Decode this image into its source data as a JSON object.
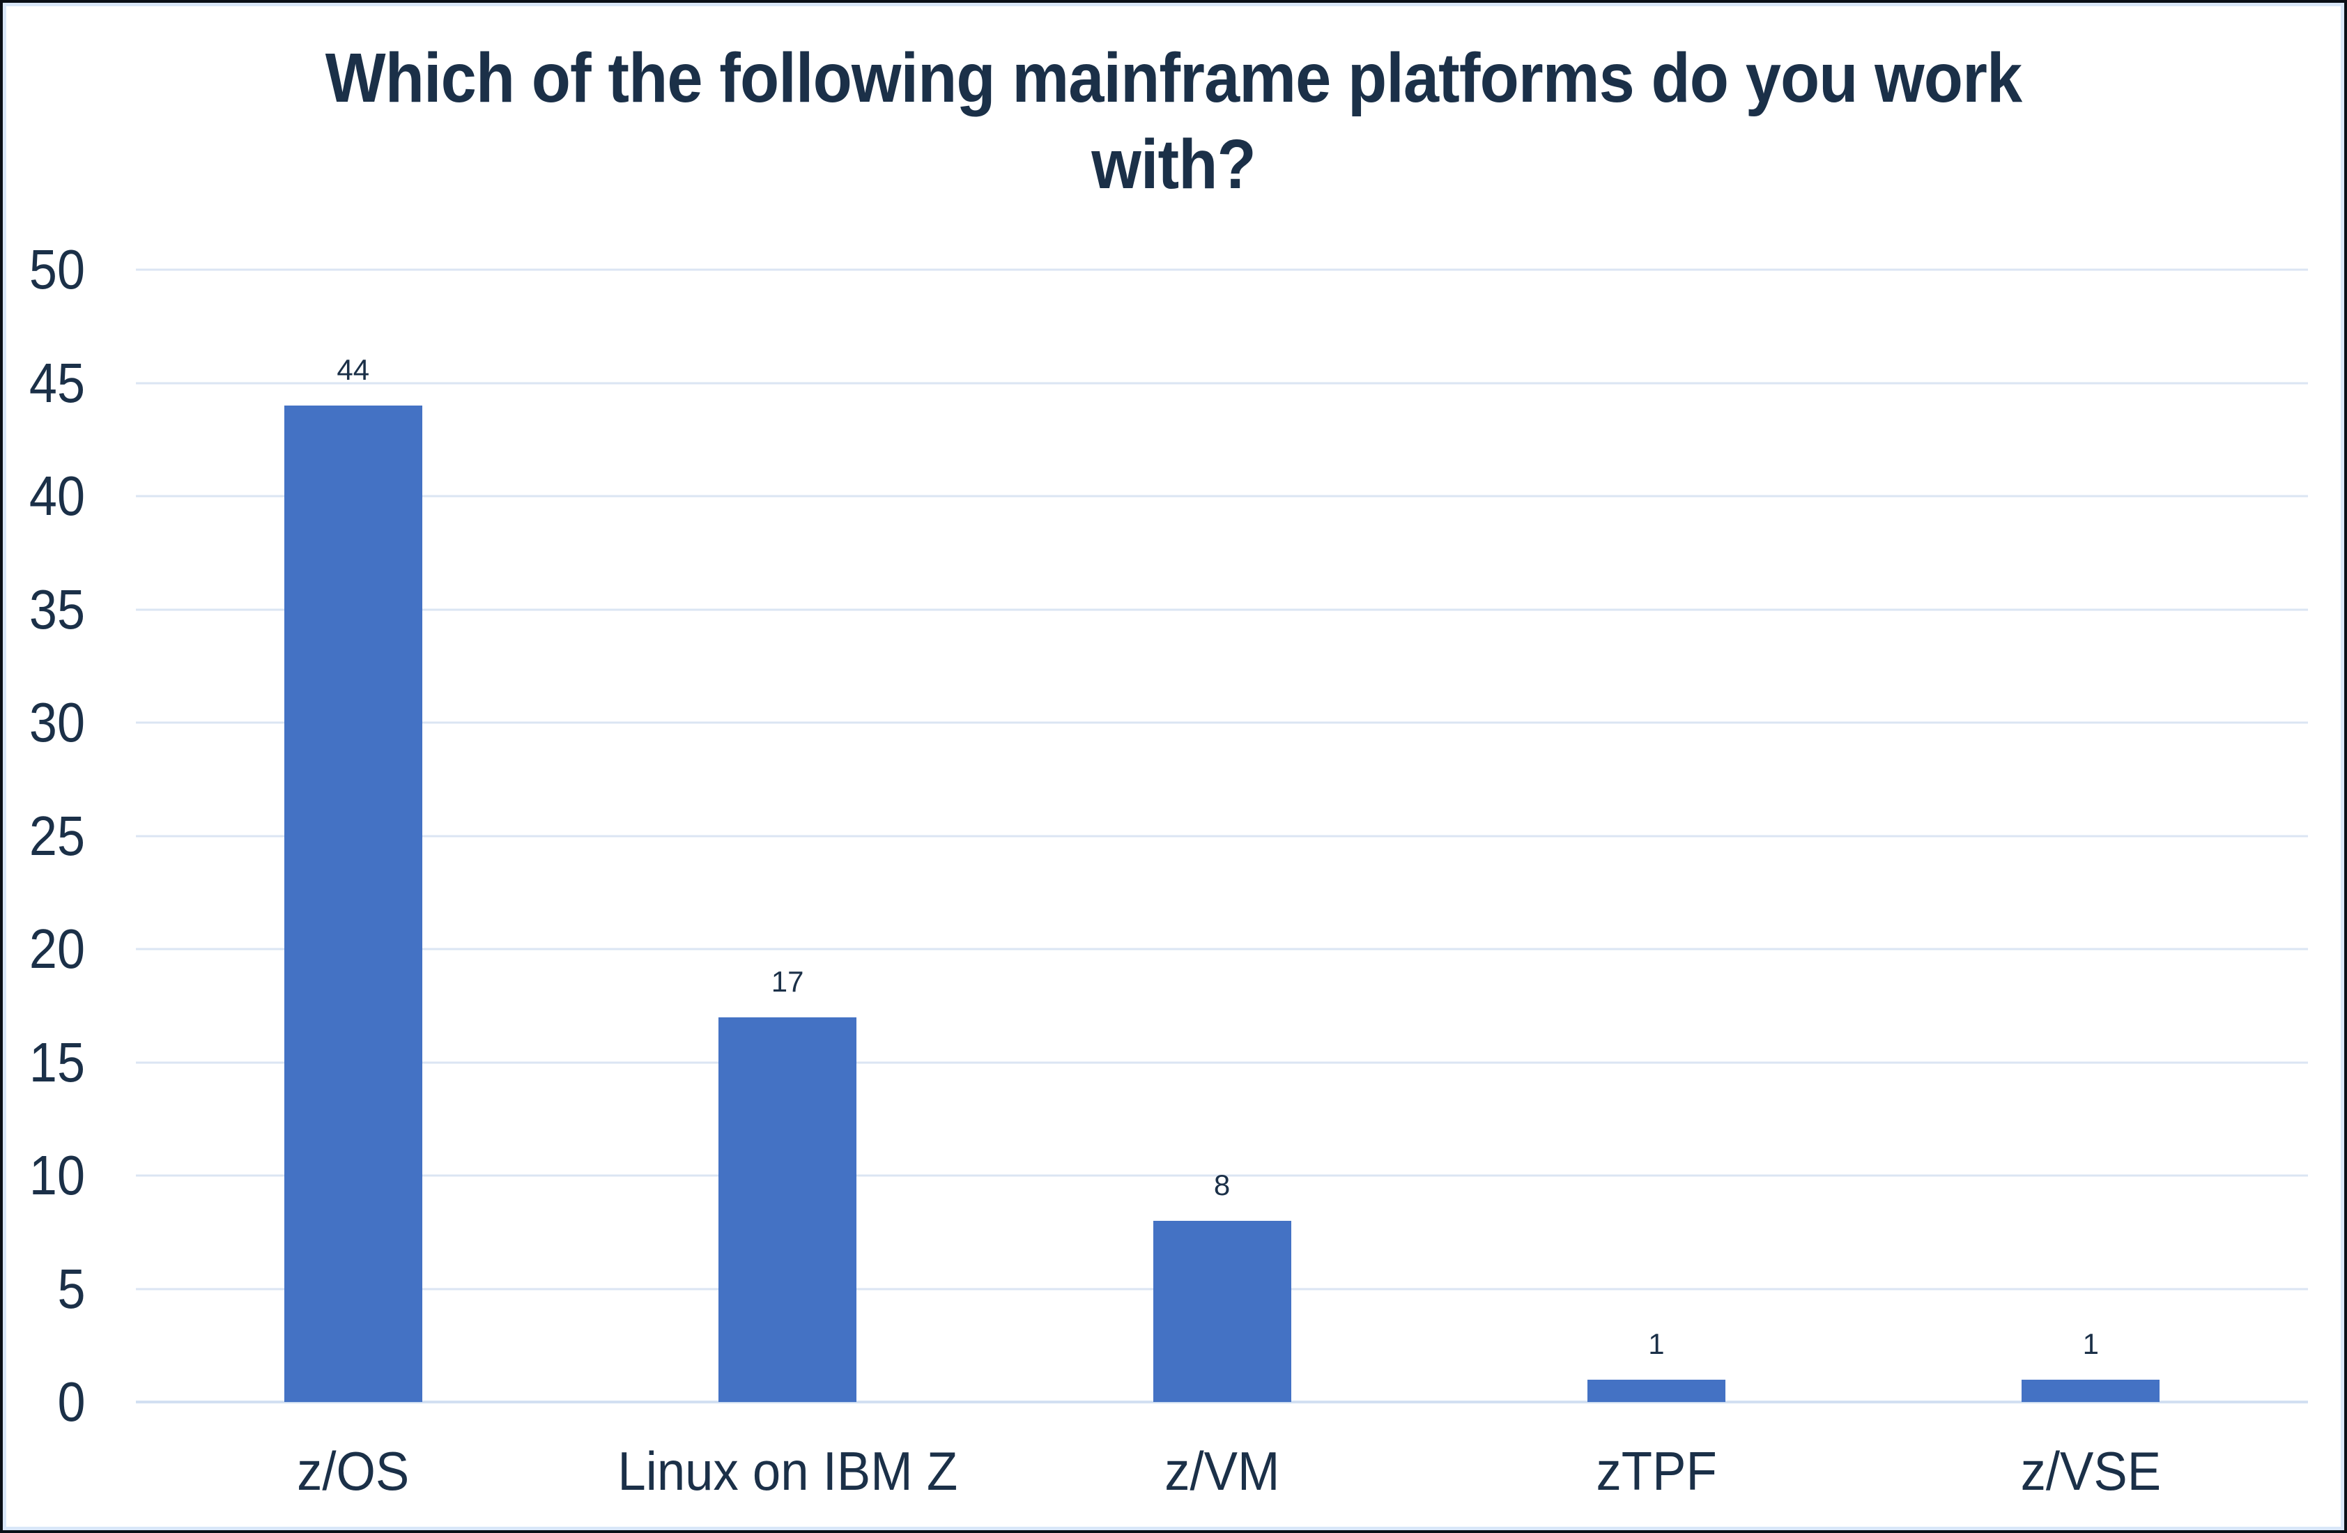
{
  "title": {
    "text": "Which of the following mainframe platforms do you work with?",
    "lines": [
      "Which of the following mainframe platforms do you work",
      "with?"
    ]
  },
  "chart_data": {
    "type": "bar",
    "title": "Which of the following mainframe platforms do you work with?",
    "categories": [
      "z/OS",
      "Linux on IBM Z",
      "z/VM",
      "zTPF",
      "z/VSE"
    ],
    "values": [
      44,
      17,
      8,
      1,
      1
    ],
    "data_labels": [
      "44",
      "17",
      "8",
      "1",
      "1"
    ],
    "xlabel": "",
    "ylabel": "",
    "ylim": [
      0,
      50
    ],
    "ytick_step": 5,
    "yticks": [
      0,
      5,
      10,
      15,
      20,
      25,
      30,
      35,
      40,
      45,
      50
    ],
    "grid": true,
    "legend_position": "none"
  },
  "colors": {
    "bar": "#4472C4",
    "text": "#1b3048",
    "gridline": "#dbe5f3",
    "axis_line": "#d2e0f2",
    "inner_frame": "#d9e7f8",
    "outer_frame": "#0a0f16",
    "background": "#ffffff"
  }
}
